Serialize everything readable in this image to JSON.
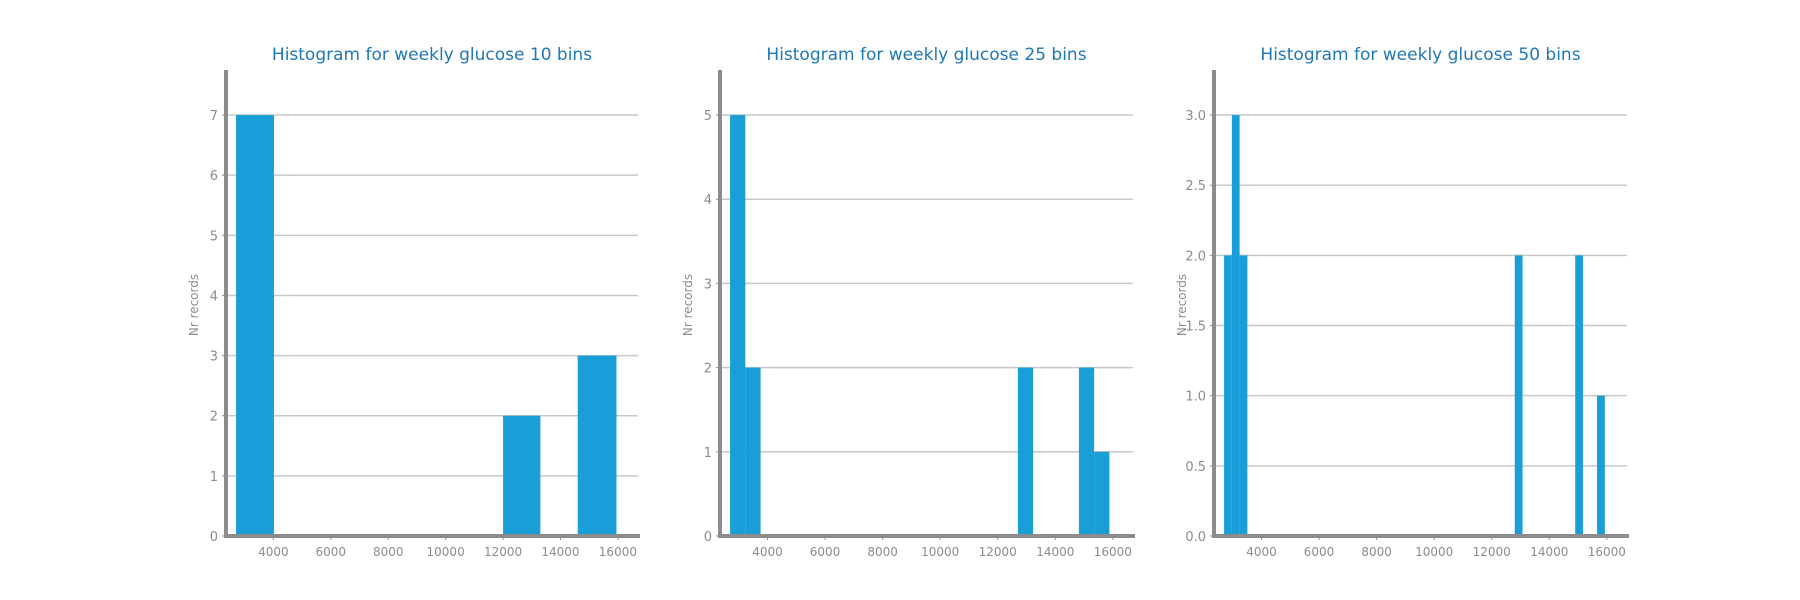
{
  "colors": {
    "bar": "#1a9ed8",
    "title": "#1f77b4",
    "axis": "#8c8c8c",
    "grid": "#c8c8c8"
  },
  "chart_data": [
    {
      "type": "bar",
      "title": "Histogram for weekly glucose 10 bins",
      "ylabel": "Nr records",
      "xlim": [
        2350,
        16700
      ],
      "ylim": [
        0,
        7.35
      ],
      "xticks": [
        4000,
        6000,
        8000,
        10000,
        12000,
        14000,
        16000
      ],
      "yticks": [
        0,
        1,
        2,
        3,
        4,
        5,
        6,
        7
      ],
      "ytick_decimals": 0,
      "grid": true,
      "bins": [
        {
          "x0": 2700,
          "x1": 4020,
          "count": 7
        },
        {
          "x0": 12000,
          "x1": 13300,
          "count": 2
        },
        {
          "x0": 14600,
          "x1": 15950,
          "count": 3
        }
      ]
    },
    {
      "type": "bar",
      "title": "Histogram for weekly glucose 25 bins",
      "ylabel": "Nr records",
      "xlim": [
        2350,
        16700
      ],
      "ylim": [
        0,
        5.25
      ],
      "xticks": [
        4000,
        6000,
        8000,
        10000,
        12000,
        14000,
        16000
      ],
      "yticks": [
        0,
        1,
        2,
        3,
        4,
        5
      ],
      "ytick_decimals": 0,
      "grid": true,
      "bins": [
        {
          "x0": 2700,
          "x1": 3230,
          "count": 5
        },
        {
          "x0": 3230,
          "x1": 3760,
          "count": 2
        },
        {
          "x0": 12700,
          "x1": 13230,
          "count": 2
        },
        {
          "x0": 14820,
          "x1": 15350,
          "count": 2
        },
        {
          "x0": 15350,
          "x1": 15880,
          "count": 1
        }
      ]
    },
    {
      "type": "bar",
      "title": "Histogram for weekly glucose 50 bins",
      "ylabel": "Nr records",
      "xlim": [
        2350,
        16700
      ],
      "ylim": [
        0,
        3.15
      ],
      "xticks": [
        4000,
        6000,
        8000,
        10000,
        12000,
        14000,
        16000
      ],
      "yticks": [
        0,
        0.5,
        1,
        1.5,
        2,
        2.5,
        3
      ],
      "ytick_decimals": 1,
      "grid": true,
      "bins": [
        {
          "x0": 2700,
          "x1": 2970,
          "count": 2
        },
        {
          "x0": 2970,
          "x1": 3240,
          "count": 3
        },
        {
          "x0": 3240,
          "x1": 3510,
          "count": 2
        },
        {
          "x0": 12800,
          "x1": 13070,
          "count": 2
        },
        {
          "x0": 14900,
          "x1": 15170,
          "count": 2
        },
        {
          "x0": 15660,
          "x1": 15930,
          "count": 1
        }
      ]
    }
  ]
}
